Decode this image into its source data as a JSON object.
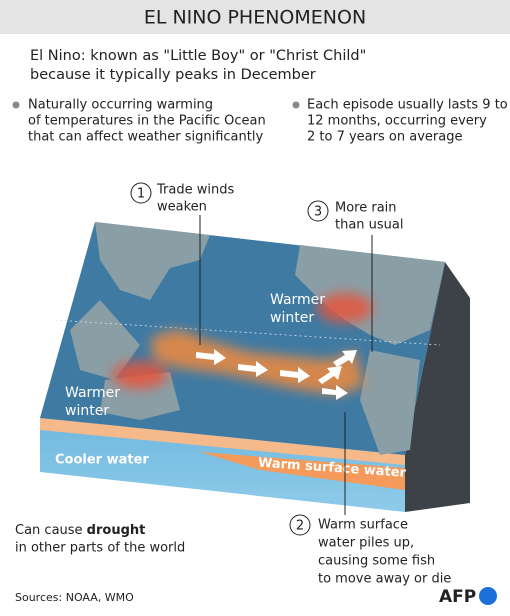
{
  "header": {
    "title": "EL NINO PHENOMENON"
  },
  "intro": {
    "lines": [
      "El Nino: known as \"Little Boy\" or \"Christ Child\"",
      "because it typically peaks in December"
    ]
  },
  "bullets": [
    {
      "lines": [
        "Naturally occurring warming",
        "of temperatures in the Pacific Ocean",
        "that can affect weather significantly"
      ]
    },
    {
      "lines": [
        "Each episode usually lasts 9 to",
        "12 months, occurring every",
        "2 to 7 years on average"
      ]
    }
  ],
  "callouts": [
    {
      "number": 1,
      "lines": [
        "Trade winds",
        "weaken"
      ]
    },
    {
      "number": 3,
      "lines": [
        "More rain",
        "than usual"
      ]
    },
    {
      "number": 2,
      "lines": [
        "Warm surface",
        "water piles up,",
        "causing some fish",
        "to move away or die"
      ]
    }
  ],
  "map_labels": {
    "warmer_winter_north": [
      "Warmer",
      "winter"
    ],
    "warmer_winter_west": [
      "Warmer",
      "winter"
    ],
    "cooler_water": "Cooler water",
    "warm_surface_water": "Warm surface water"
  },
  "footnote": {
    "before": "Can cause ",
    "bold": "drought",
    "after": "in other parts of the world"
  },
  "sources": "Sources: NOAA, WMO",
  "logo": "AFP"
}
